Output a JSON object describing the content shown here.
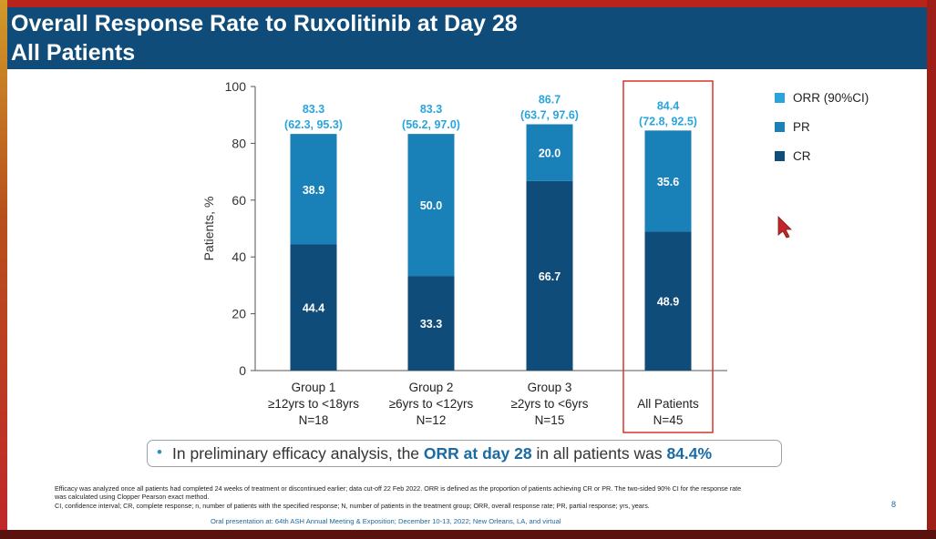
{
  "slide": {
    "title_line1": "Overall Response Rate to Ruxolitinib at Day 28",
    "title_line2": "All Patients",
    "note": {
      "prefix": "In preliminary efficacy analysis, the ",
      "highlight1": "ORR at day 28",
      "middle": " in all patients was ",
      "highlight2": "84.4%"
    },
    "footnotes": [
      "Efficacy was analyzed once all patients had completed 24 weeks of treatment or discontinued earlier; data cut-off 22 Feb 2022. ORR is defined as the proportion of patients achieving CR or PR. The two-sided 90% CI for the response rate",
      "was calculated using Clopper Pearson exact method.",
      "CI, confidence interval; CR, complete response; n, number of patients with the specified response; N, number of patients in the treatment group; ORR, overall response rate; PR, partial response; yrs, years."
    ],
    "oral": "Oral presentation at: 64th ASH Annual Meeting & Exposition; December 10-13, 2022; New Orleans, LA, and virtual",
    "page_number": "8"
  },
  "colors": {
    "cr": "#0f4c7a",
    "pr": "#1a80b8",
    "orr_label": "#2aa5dc",
    "highlight_box": "#d9342b",
    "background_frame": "#b8241c"
  },
  "chart_data": {
    "type": "bar",
    "stacked": true,
    "ylabel": "Patients, %",
    "ylim": [
      0,
      100
    ],
    "yticks": [
      0,
      20,
      40,
      60,
      80,
      100
    ],
    "categories": [
      [
        "Group 1",
        "≥12yrs to <18yrs",
        "N=18"
      ],
      [
        "Group 2",
        "≥6yrs to <12yrs",
        "N=12"
      ],
      [
        "Group 3",
        "≥2yrs to <6yrs",
        "N=15"
      ],
      [
        "All Patients",
        "N=45"
      ]
    ],
    "series": [
      {
        "name": "CR",
        "values": [
          44.4,
          33.3,
          66.7,
          48.9
        ]
      },
      {
        "name": "PR",
        "values": [
          38.9,
          50.0,
          20.0,
          35.6
        ]
      }
    ],
    "orr": {
      "name": "ORR (90%CI)",
      "values": [
        83.3,
        83.3,
        86.7,
        84.4
      ],
      "ci": [
        "(62.3, 95.3)",
        "(56.2, 97.0)",
        "(63.7, 97.6)",
        "(72.8, 92.5)"
      ]
    },
    "legend": [
      "ORR (90%CI)",
      "PR",
      "CR"
    ],
    "legend_position": "right",
    "highlighted_category": 3
  }
}
